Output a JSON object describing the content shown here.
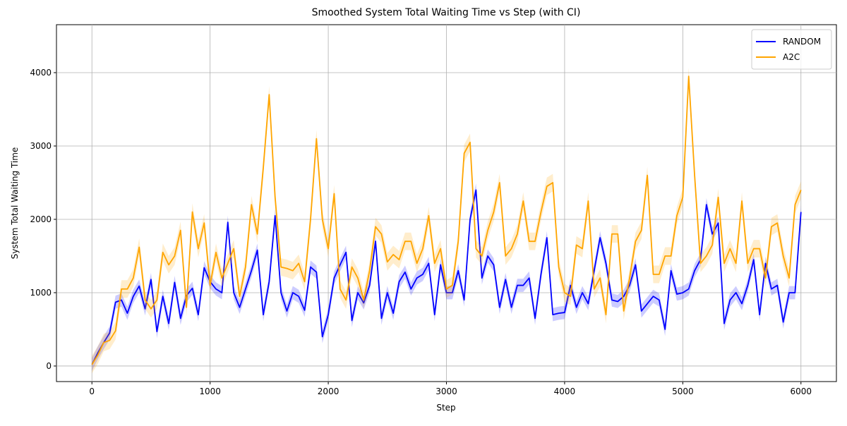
{
  "chart_data": {
    "type": "line",
    "title": "Smoothed System Total Waiting Time vs Step (with CI)",
    "xlabel": "Step",
    "ylabel": "System Total Waiting Time",
    "xlim": [
      -300,
      6300
    ],
    "ylim": [
      -212,
      4654
    ],
    "xticks": [
      0,
      1000,
      2000,
      3000,
      4000,
      5000,
      6000
    ],
    "yticks": [
      0,
      1000,
      2000,
      3000,
      4000
    ],
    "grid": true,
    "legend": "upper right",
    "x": [
      0,
      50,
      100,
      150,
      200,
      250,
      300,
      350,
      400,
      450,
      500,
      550,
      600,
      650,
      700,
      750,
      800,
      850,
      900,
      950,
      1000,
      1050,
      1100,
      1150,
      1200,
      1250,
      1300,
      1350,
      1400,
      1450,
      1500,
      1550,
      1600,
      1650,
      1700,
      1750,
      1800,
      1850,
      1900,
      1950,
      2000,
      2050,
      2100,
      2150,
      2200,
      2250,
      2300,
      2350,
      2400,
      2450,
      2500,
      2550,
      2600,
      2650,
      2700,
      2750,
      2800,
      2850,
      2900,
      2950,
      3000,
      3050,
      3100,
      3150,
      3200,
      3250,
      3300,
      3350,
      3400,
      3450,
      3500,
      3550,
      3600,
      3650,
      3700,
      3750,
      3800,
      3850,
      3900,
      3950,
      4000,
      4050,
      4100,
      4150,
      4200,
      4250,
      4300,
      4350,
      4400,
      4450,
      4500,
      4550,
      4600,
      4650,
      4700,
      4750,
      4800,
      4850,
      4900,
      4950,
      5000,
      5050,
      5100,
      5150,
      5200,
      5250,
      5300,
      5350,
      5400,
      5450,
      5500,
      5550,
      5600,
      5650,
      5700,
      5750,
      5800,
      5850,
      5900,
      5950,
      6000
    ],
    "series": [
      {
        "name": "RANDOM",
        "color": "#0000ff",
        "ci": 90,
        "values": [
          20,
          180,
          320,
          450,
          870,
          900,
          720,
          950,
          1090,
          780,
          1180,
          470,
          950,
          580,
          1140,
          650,
          960,
          1060,
          700,
          1340,
          1150,
          1050,
          1000,
          1960,
          1000,
          800,
          1050,
          1300,
          1580,
          700,
          1150,
          2050,
          1000,
          750,
          1000,
          950,
          760,
          1350,
          1280,
          400,
          700,
          1200,
          1380,
          1550,
          620,
          1000,
          860,
          1100,
          1700,
          650,
          1000,
          720,
          1150,
          1280,
          1050,
          1200,
          1250,
          1400,
          700,
          1380,
          1000,
          1000,
          1300,
          900,
          2000,
          2400,
          1200,
          1500,
          1380,
          800,
          1180,
          800,
          1100,
          1100,
          1200,
          650,
          1250,
          1750,
          700,
          720,
          730,
          1100,
          800,
          1000,
          850,
          1300,
          1750,
          1400,
          900,
          880,
          950,
          1100,
          1380,
          750,
          850,
          950,
          900,
          500,
          1300,
          980,
          1000,
          1050,
          1300,
          1450,
          2200,
          1800,
          1950,
          580,
          900,
          1000,
          850,
          1100,
          1450,
          700,
          1400,
          1050,
          1100,
          600,
          1000,
          1000,
          2100
        ]
      },
      {
        "name": "A2C",
        "color": "#ffa500",
        "ci": 120,
        "values": [
          20,
          150,
          320,
          350,
          480,
          1050,
          1050,
          1200,
          1620,
          900,
          780,
          900,
          1550,
          1380,
          1500,
          1850,
          800,
          2100,
          1600,
          1950,
          1100,
          1550,
          1200,
          1400,
          1600,
          950,
          1350,
          2200,
          1800,
          2700,
          3700,
          2300,
          1350,
          1330,
          1300,
          1400,
          1150,
          2000,
          3100,
          2000,
          1600,
          2350,
          1050,
          900,
          1350,
          1200,
          900,
          1300,
          1900,
          1800,
          1420,
          1520,
          1450,
          1700,
          1700,
          1400,
          1600,
          2050,
          1400,
          1600,
          1050,
          1100,
          1700,
          2900,
          3050,
          1600,
          1500,
          1850,
          2100,
          2500,
          1500,
          1600,
          1800,
          2250,
          1700,
          1700,
          2100,
          2450,
          2500,
          1350,
          1000,
          950,
          1650,
          1600,
          2250,
          1050,
          1200,
          700,
          1800,
          1800,
          750,
          1200,
          1700,
          1850,
          2600,
          1250,
          1250,
          1500,
          1500,
          2050,
          2300,
          3950,
          2600,
          1400,
          1500,
          1650,
          2300,
          1400,
          1600,
          1400,
          2250,
          1400,
          1600,
          1600,
          1200,
          1900,
          1950,
          1500,
          1200,
          2200,
          2400
        ]
      }
    ]
  }
}
